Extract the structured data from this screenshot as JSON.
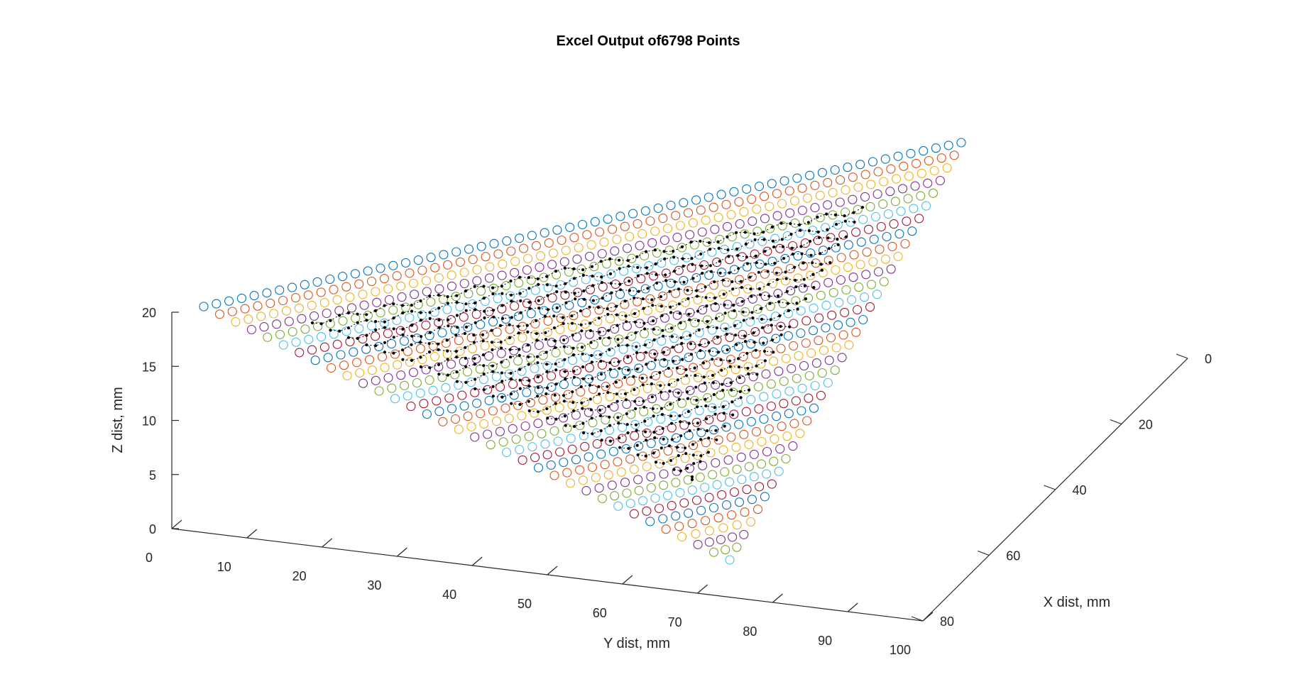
{
  "chart_data": {
    "type": "scatter",
    "title": "Excel Output of6798 Points",
    "xlabel": "X dist, mm",
    "ylabel": "Y dist, mm",
    "zlabel": "Z dist, mm",
    "x_ticks": [
      "0",
      "20",
      "40",
      "60",
      "80"
    ],
    "y_ticks": [
      "0",
      "10",
      "20",
      "30",
      "40",
      "50",
      "60",
      "70",
      "80",
      "90",
      "100"
    ],
    "z_ticks": [
      "0",
      "5",
      "10",
      "15",
      "20"
    ],
    "xlim": [
      0,
      80
    ],
    "ylim": [
      0,
      100
    ],
    "zlim": [
      0,
      20
    ],
    "grid": false,
    "view": "3d",
    "surface": {
      "description_free": true,
      "z_at_y0": 20,
      "z_at_y100": 0,
      "z_at_x0_y100": 20,
      "plane_corners": [
        {
          "x": 0,
          "y": 0,
          "z": 20
        },
        {
          "x": 80,
          "y": 100,
          "z": 0
        },
        {
          "x": 0,
          "y": 100,
          "z": 20
        }
      ],
      "outer_marker": "open-circle",
      "outer_series_colors": [
        "#0072BD",
        "#D95319",
        "#EDB120",
        "#7E2F8E",
        "#77AC30",
        "#4DBEEE",
        "#A2142F"
      ],
      "inner_marker": "black-dot-path",
      "inner_color": "#000000"
    }
  }
}
